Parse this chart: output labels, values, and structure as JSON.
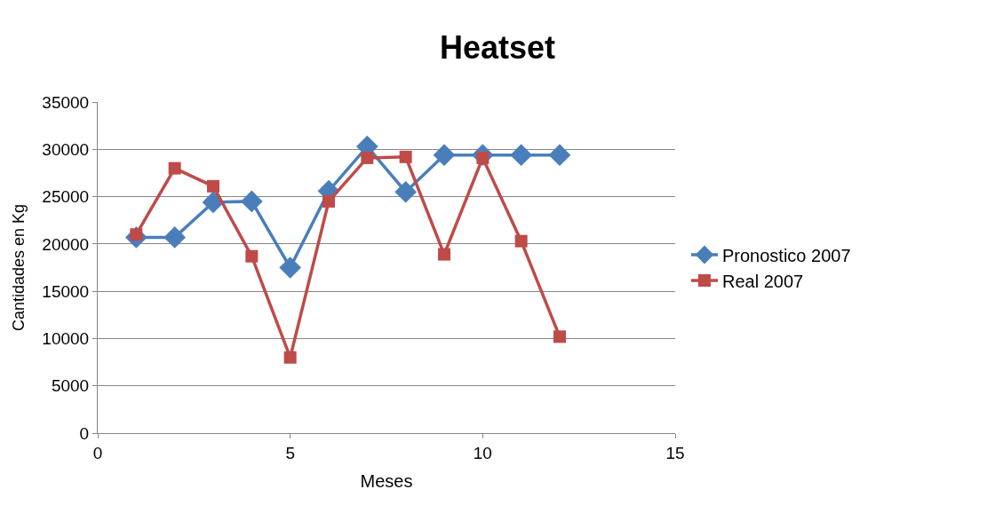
{
  "chart_data": {
    "type": "line",
    "title": "Heatset",
    "xlabel": "Meses",
    "ylabel": "Cantidades en Kg",
    "x": [
      1,
      2,
      3,
      4,
      5,
      6,
      7,
      8,
      9,
      10,
      11,
      12
    ],
    "series": [
      {
        "name": "Pronostico 2007",
        "color": "#4a7ebb",
        "marker": "diamond",
        "values": [
          20700,
          20700,
          24400,
          24500,
          17500,
          25600,
          30300,
          25500,
          29400,
          29400,
          29400,
          29400
        ]
      },
      {
        "name": "Real 2007",
        "color": "#be4b48",
        "marker": "square",
        "values": [
          21000,
          28000,
          26100,
          18700,
          8000,
          24500,
          29100,
          29200,
          18900,
          29100,
          20300,
          10200
        ]
      }
    ],
    "xlim": [
      0,
      15
    ],
    "xticks": [
      0,
      5,
      10,
      15
    ],
    "ylim": [
      0,
      35000
    ],
    "yticks": [
      0,
      5000,
      10000,
      15000,
      20000,
      25000,
      30000,
      35000
    ],
    "grid": "y",
    "legend": "right",
    "line_style": "solid"
  }
}
